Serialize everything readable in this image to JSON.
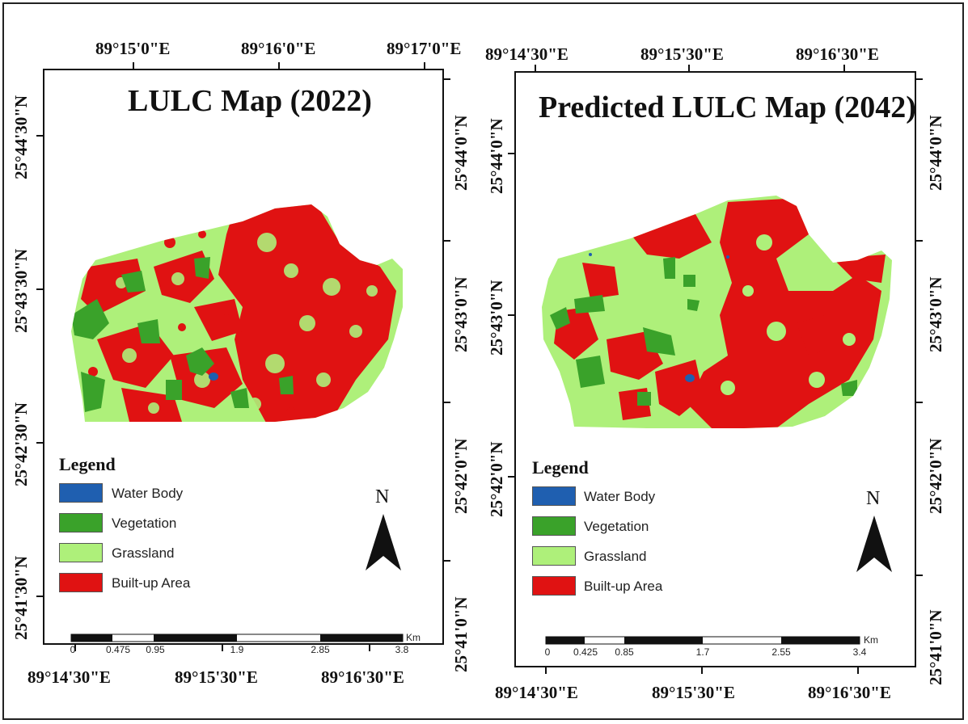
{
  "colors": {
    "water_body": "#1f5fb0",
    "vegetation": "#3aa22a",
    "grassland": "#aef07a",
    "built_up": "#e01212"
  },
  "left_map": {
    "title": "LULC Map (2022)",
    "top_labels": [
      "89°15'0\"E",
      "89°16'0\"E",
      "89°17'0\"E"
    ],
    "bottom_labels": [
      "89°14'30\"E",
      "89°15'30\"E",
      "89°16'30\"E"
    ],
    "left_labels": [
      "25°44'30\"N",
      "25°43'30\"N",
      "25°42'30\"N",
      "25°41'30\"N"
    ],
    "right_labels": [
      "25°44'0\"N",
      "25°43'0\"N",
      "25°42'0\"N",
      "25°41'0\"N"
    ],
    "legend_title": "Legend",
    "legend": [
      "Water Body",
      "Vegetation",
      "Grassland",
      "Built-up Area"
    ],
    "north": "N",
    "scale_unit": "Km",
    "scale_labels": [
      "0",
      "0.475",
      "0.95",
      "1.9",
      "2.85",
      "3.8"
    ]
  },
  "right_map": {
    "title": "Predicted LULC Map (2042)",
    "top_labels": [
      "89°14'30\"E",
      "89°15'30\"E",
      "89°16'30\"E"
    ],
    "bottom_labels": [
      "89°14'30\"E",
      "89°15'30\"E",
      "89°16'30\"E"
    ],
    "left_labels": [
      "25°44'0\"N",
      "25°43'0\"N",
      "25°42'0\"N"
    ],
    "right_labels": [
      "25°44'0\"N",
      "25°43'0\"N",
      "25°42'0\"N",
      "25°41'0\"N"
    ],
    "legend_title": "Legend",
    "legend": [
      "Water Body",
      "Vegetation",
      "Grassland",
      "Built-up Area"
    ],
    "north": "N",
    "scale_unit": "Km",
    "scale_labels": [
      "0",
      "0.425",
      "0.85",
      "1.7",
      "2.55",
      "3.4"
    ]
  }
}
